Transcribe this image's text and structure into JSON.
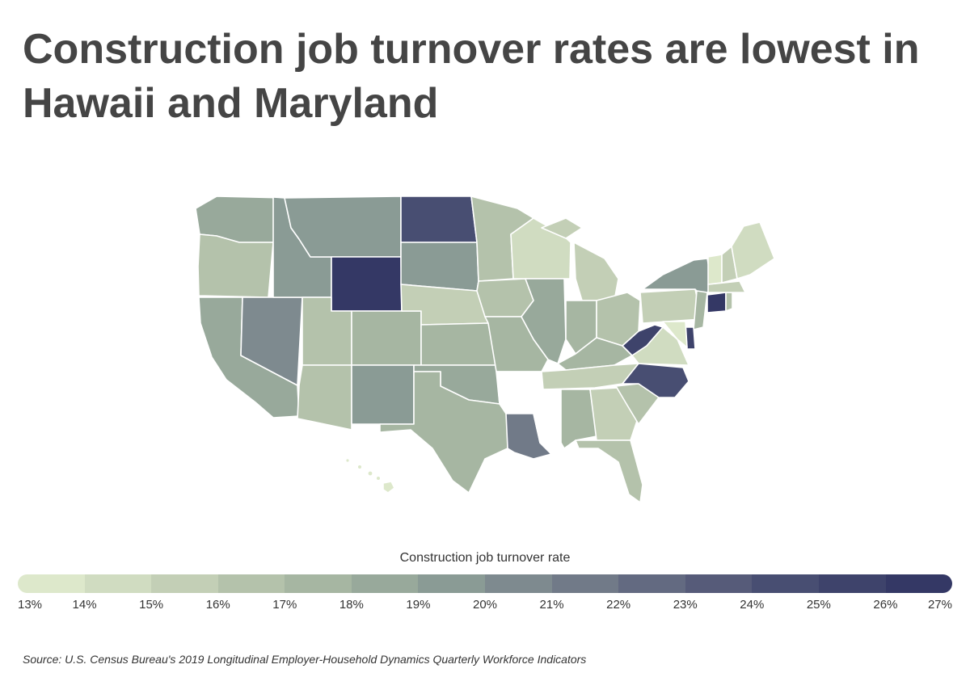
{
  "title": "Construction job turnover rates are lowest in Hawaii and Maryland",
  "legend": {
    "title": "Construction job turnover rate",
    "ticks": [
      "13%",
      "14%",
      "15%",
      "16%",
      "17%",
      "18%",
      "19%",
      "20%",
      "21%",
      "22%",
      "23%",
      "24%",
      "25%",
      "26%",
      "27%"
    ],
    "colors": [
      "#dde8cb",
      "#d0dcc1",
      "#c3cfb6",
      "#b4c2ab",
      "#a6b6a2",
      "#98a99b",
      "#8a9b95",
      "#7e8a8f",
      "#717a88",
      "#636a81",
      "#565b79",
      "#484e72",
      "#3e436b",
      "#343865"
    ]
  },
  "source": "Source: U.S. Census Bureau's 2019 Longitudinal Employer-Household Dynamics Quarterly Workforce Indicators",
  "map_data": {
    "type": "choropleth",
    "unit": "%",
    "states": [
      {
        "code": "WA",
        "rate": 18.0
      },
      {
        "code": "OR",
        "rate": 16.5
      },
      {
        "code": "CA",
        "rate": 18.2
      },
      {
        "code": "NV",
        "rate": 20.3
      },
      {
        "code": "ID",
        "rate": 19.0
      },
      {
        "code": "MT",
        "rate": 19.0
      },
      {
        "code": "WY",
        "rate": 26.5
      },
      {
        "code": "UT",
        "rate": 16.5
      },
      {
        "code": "AZ",
        "rate": 16.2
      },
      {
        "code": "CO",
        "rate": 17.5
      },
      {
        "code": "NM",
        "rate": 19.5
      },
      {
        "code": "ND",
        "rate": 24.5
      },
      {
        "code": "SD",
        "rate": 19.0
      },
      {
        "code": "NE",
        "rate": 15.5
      },
      {
        "code": "KS",
        "rate": 17.8
      },
      {
        "code": "OK",
        "rate": 18.5
      },
      {
        "code": "TX",
        "rate": 17.8
      },
      {
        "code": "MN",
        "rate": 16.5
      },
      {
        "code": "IA",
        "rate": 16.8
      },
      {
        "code": "MO",
        "rate": 17.0
      },
      {
        "code": "AR",
        "rate": null
      },
      {
        "code": "LA",
        "rate": 21.5
      },
      {
        "code": "WI",
        "rate": 14.5
      },
      {
        "code": "IL",
        "rate": 18.5
      },
      {
        "code": "MI",
        "rate": 15.8
      },
      {
        "code": "IN",
        "rate": 17.5
      },
      {
        "code": "OH",
        "rate": 16.5
      },
      {
        "code": "KY",
        "rate": 17.5
      },
      {
        "code": "TN",
        "rate": 15.5
      },
      {
        "code": "MS",
        "rate": null
      },
      {
        "code": "AL",
        "rate": 17.8
      },
      {
        "code": "GA",
        "rate": 15.8
      },
      {
        "code": "FL",
        "rate": 16.5
      },
      {
        "code": "SC",
        "rate": 16.5
      },
      {
        "code": "NC",
        "rate": 24.8
      },
      {
        "code": "VA",
        "rate": 14.5
      },
      {
        "code": "WV",
        "rate": 25.5
      },
      {
        "code": "PA",
        "rate": 15.8
      },
      {
        "code": "NY",
        "rate": 19.0
      },
      {
        "code": "NJ",
        "rate": 17.5
      },
      {
        "code": "DE",
        "rate": 25.5
      },
      {
        "code": "MD",
        "rate": 13.5
      },
      {
        "code": "CT",
        "rate": 26.5
      },
      {
        "code": "RI",
        "rate": 16.0
      },
      {
        "code": "MA",
        "rate": 15.0
      },
      {
        "code": "VT",
        "rate": 13.8
      },
      {
        "code": "NH",
        "rate": 15.0
      },
      {
        "code": "ME",
        "rate": 14.8
      },
      {
        "code": "HI",
        "rate": 13.2
      }
    ]
  }
}
